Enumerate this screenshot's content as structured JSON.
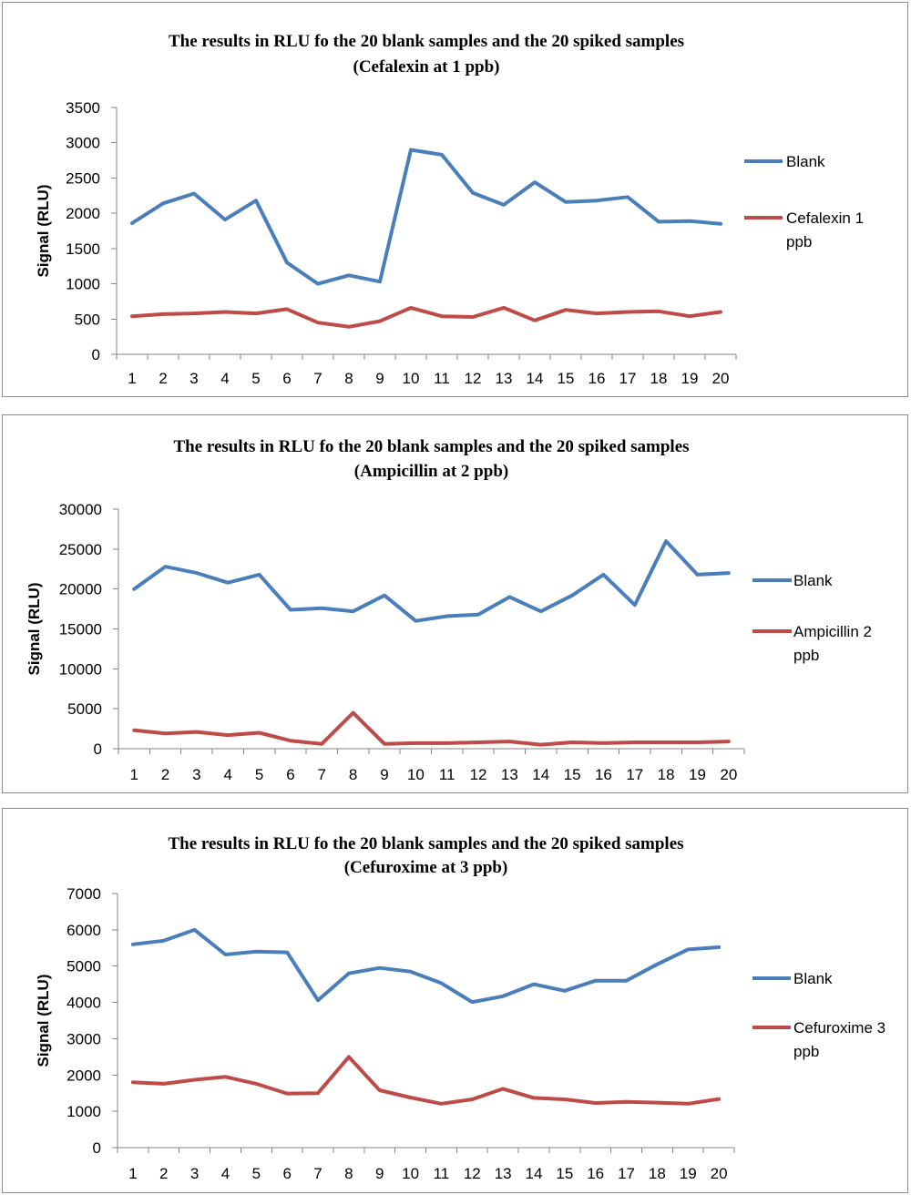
{
  "colors": {
    "blank": "#4a7ebb",
    "spiked": "#be4b48"
  },
  "chart_data": [
    {
      "type": "line",
      "title": "The results in RLU fo the 20 blank samples and the 20 spiked samples",
      "subtitle": "(Cefalexin at  1 ppb)",
      "xlabel": "",
      "ylabel": "Signal (RLU)",
      "ylim": [
        0,
        3500
      ],
      "yticks": [
        0,
        500,
        1000,
        1500,
        2000,
        2500,
        3000,
        3500
      ],
      "categories": [
        "1",
        "2",
        "3",
        "4",
        "5",
        "6",
        "7",
        "8",
        "9",
        "10",
        "11",
        "12",
        "13",
        "14",
        "15",
        "16",
        "17",
        "18",
        "19",
        "20"
      ],
      "legend": "right",
      "grid": false,
      "series": [
        {
          "name": "Blank",
          "values": [
            1860,
            2140,
            2280,
            1910,
            2180,
            1300,
            1000,
            1120,
            1030,
            2900,
            2830,
            2290,
            2120,
            2440,
            2160,
            2180,
            2230,
            1880,
            1890,
            1850
          ]
        },
        {
          "name": "Cefalexin 1 ppb",
          "values": [
            540,
            570,
            580,
            600,
            580,
            640,
            450,
            390,
            470,
            660,
            540,
            530,
            660,
            480,
            630,
            580,
            600,
            610,
            540,
            600
          ]
        }
      ]
    },
    {
      "type": "line",
      "title": "The results in RLU fo the 20 blank samples and the 20 spiked samples",
      "subtitle": "(Ampicillin at  2 ppb)",
      "xlabel": "",
      "ylabel": "Signal (RLU)",
      "ylim": [
        0,
        30000
      ],
      "yticks": [
        0,
        5000,
        10000,
        15000,
        20000,
        25000,
        30000
      ],
      "categories": [
        "1",
        "2",
        "3",
        "4",
        "5",
        "6",
        "7",
        "8",
        "9",
        "10",
        "11",
        "12",
        "13",
        "14",
        "15",
        "16",
        "17",
        "18",
        "19",
        "20"
      ],
      "legend": "right",
      "grid": false,
      "series": [
        {
          "name": "Blank",
          "values": [
            20000,
            22800,
            22000,
            20800,
            21800,
            17400,
            17600,
            17200,
            19200,
            16000,
            16600,
            16800,
            19000,
            17200,
            19200,
            21800,
            18000,
            26000,
            21800,
            22000
          ]
        },
        {
          "name": "Ampicillin 2 ppb",
          "values": [
            2300,
            1900,
            2100,
            1700,
            2000,
            1000,
            600,
            4500,
            600,
            700,
            700,
            800,
            900,
            500,
            800,
            700,
            800,
            800,
            800,
            900
          ]
        }
      ]
    },
    {
      "type": "line",
      "title": "The results in RLU fo the 20 blank samples and the 20 spiked samples",
      "subtitle": "(Cefuroxime at  3 ppb)",
      "xlabel": "",
      "ylabel": "Signal (RLU)",
      "ylim": [
        0,
        7000
      ],
      "yticks": [
        0,
        1000,
        2000,
        3000,
        4000,
        5000,
        6000,
        7000
      ],
      "categories": [
        "1",
        "2",
        "3",
        "4",
        "5",
        "6",
        "7",
        "8",
        "9",
        "10",
        "11",
        "12",
        "13",
        "14",
        "15",
        "16",
        "17",
        "18",
        "19",
        "20"
      ],
      "legend": "right",
      "grid": false,
      "series": [
        {
          "name": "Blank",
          "values": [
            5600,
            5700,
            6000,
            5320,
            5400,
            5380,
            4060,
            4800,
            4950,
            4850,
            4530,
            4010,
            4170,
            4500,
            4320,
            4600,
            4600,
            5050,
            5460,
            5520
          ]
        },
        {
          "name": "Cefuroxime 3 ppb",
          "values": [
            1800,
            1760,
            1870,
            1950,
            1760,
            1490,
            1500,
            2500,
            1580,
            1380,
            1210,
            1330,
            1620,
            1370,
            1330,
            1230,
            1260,
            1240,
            1210,
            1340
          ]
        }
      ]
    }
  ]
}
